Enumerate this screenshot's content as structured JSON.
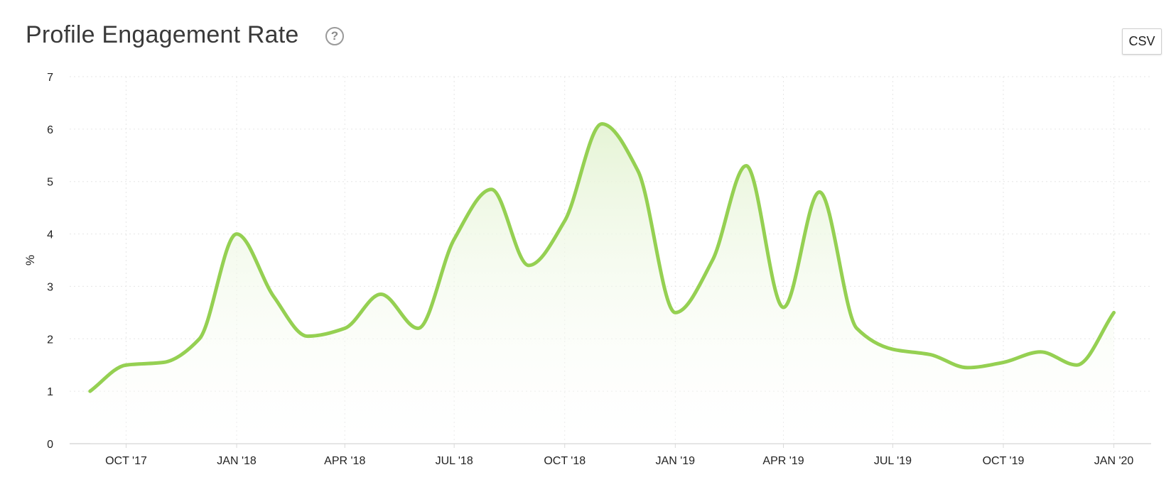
{
  "header": {
    "title": "Profile Engagement Rate",
    "help_icon": "?",
    "csv_label": "CSV"
  },
  "colors": {
    "line": "#95d052",
    "area_top": "#e6f4d6",
    "grid": "#e6e6e6",
    "axis": "#d9d9d9"
  },
  "chart_data": {
    "type": "area",
    "title": "Profile Engagement Rate",
    "xlabel": "",
    "ylabel": "%",
    "ylim": [
      0,
      7
    ],
    "yticks": [
      "0",
      "1",
      "2",
      "3",
      "4",
      "5",
      "6",
      "7"
    ],
    "x_tick_labels": [
      "OCT '17",
      "JAN '18",
      "APR '18",
      "JUL '18",
      "OCT '18",
      "JAN '19",
      "APR '19",
      "JUL '19",
      "OCT '19",
      "JAN '20"
    ],
    "x_tick_dates": [
      "2017-10-01",
      "2018-01-01",
      "2018-04-01",
      "2018-07-01",
      "2018-10-01",
      "2019-01-01",
      "2019-04-01",
      "2019-07-01",
      "2019-10-01",
      "2020-01-01"
    ],
    "xlim": [
      "2017-08-15",
      "2020-02-01"
    ],
    "grid": true,
    "legend": "none",
    "series": [
      {
        "x": [
          "2017-09-01",
          "2017-10-01",
          "2017-11-01",
          "2017-12-01",
          "2018-01-01",
          "2018-02-01",
          "2018-03-01",
          "2018-04-01",
          "2018-05-01",
          "2018-06-01",
          "2018-07-01",
          "2018-08-01",
          "2018-09-01",
          "2018-10-01",
          "2018-11-01",
          "2018-12-01",
          "2019-01-01",
          "2019-02-01",
          "2019-03-01",
          "2019-04-01",
          "2019-05-01",
          "2019-06-01",
          "2019-07-01",
          "2019-08-01",
          "2019-09-01",
          "2019-10-01",
          "2019-11-01",
          "2019-12-01",
          "2020-01-01"
        ],
        "values": [
          1.0,
          1.5,
          1.55,
          2.0,
          4.0,
          2.8,
          2.05,
          2.2,
          2.85,
          2.2,
          3.9,
          4.85,
          3.4,
          4.25,
          6.1,
          5.2,
          2.5,
          3.5,
          5.3,
          2.6,
          4.8,
          2.2,
          1.8,
          1.7,
          1.45,
          1.55,
          1.75,
          1.5,
          2.5
        ]
      }
    ]
  }
}
